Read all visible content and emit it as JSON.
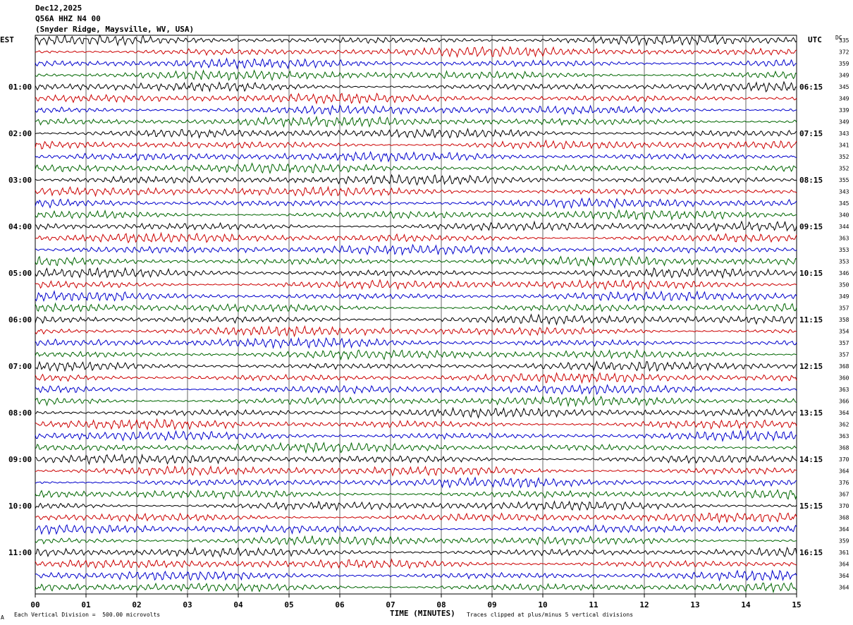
{
  "header": {
    "date": "Dec12,2025",
    "station": "Q56A HHZ N4 00",
    "location": "(Snyder Ridge, Maysville, WV, USA)"
  },
  "left_axis_title": "EST",
  "right_axis_title": "UTC",
  "dc_title": "DC",
  "footer": {
    "scale_note": "Each Vertical Division =  500.00 microvolts",
    "clip_note": "Traces clipped at plus/minus 5 vertical divisions",
    "corner_mark": "A"
  },
  "colors": {
    "trace_cycle": [
      "#000000",
      "#cc0000",
      "#0000cc",
      "#006600"
    ],
    "grid": "#000000"
  },
  "chart_data": {
    "type": "line",
    "title": "Dec12,2025",
    "xlabel": "TIME (MINUTES)",
    "ylabel": "",
    "xlim": [
      0,
      15
    ],
    "x_ticks": [
      "00",
      "01",
      "02",
      "03",
      "04",
      "05",
      "06",
      "07",
      "08",
      "09",
      "10",
      "11",
      "12",
      "13",
      "14",
      "15"
    ],
    "row_minutes": 15,
    "row_count": 48,
    "left_hour_labels": [
      "01:00",
      "02:00",
      "03:00",
      "04:00",
      "05:00",
      "06:00",
      "07:00",
      "08:00",
      "09:00",
      "10:00",
      "11:00"
    ],
    "right_hour_labels": [
      "06:15",
      "07:15",
      "08:15",
      "09:15",
      "10:15",
      "11:15",
      "12:15",
      "13:15",
      "14:15",
      "15:15",
      "16:15"
    ],
    "dc_offsets": [
      335,
      372,
      359,
      349,
      345,
      349,
      339,
      349,
      343,
      341,
      352,
      352,
      355,
      343,
      345,
      340,
      344,
      363,
      353,
      353,
      346,
      350,
      349,
      357,
      358,
      354,
      357,
      357,
      368,
      360,
      363,
      366,
      364,
      362,
      363,
      368,
      370,
      364,
      376,
      367,
      370,
      368,
      364,
      359,
      361,
      364,
      364,
      364
    ],
    "grid": true,
    "legend": "none"
  }
}
